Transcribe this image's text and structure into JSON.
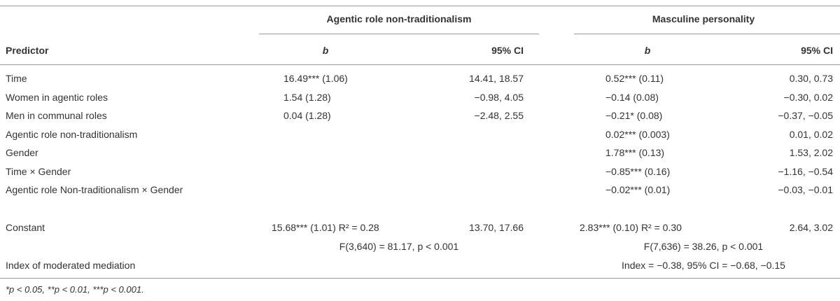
{
  "header": {
    "groups": [
      "Agentic role non-traditionalism",
      "Masculine personality"
    ],
    "columns": [
      "Predictor",
      "b",
      "95% CI",
      "b",
      "95% CI"
    ]
  },
  "rows": [
    [
      "Time",
      "16.49*** (1.06)",
      "14.41, 18.57",
      "0.52*** (0.11)",
      "0.30, 0.73"
    ],
    [
      "Women in agentic roles",
      "1.54 (1.28)",
      "−0.98, 4.05",
      "−0.14 (0.08)",
      "−0.30, 0.02"
    ],
    [
      "Men in communal roles",
      "0.04 (1.28)",
      "−2.48, 2.55",
      "−0.21* (0.08)",
      "−0.37, −0.05"
    ],
    [
      "Agentic role non-traditionalism",
      null,
      null,
      "0.02*** (0.003)",
      "0.01, 0.02"
    ],
    [
      "Gender",
      null,
      null,
      "1.78*** (0.13)",
      "1.53, 2.02"
    ],
    [
      "Time × Gender",
      null,
      null,
      "−0.85*** (0.16)",
      "−1.16, −0.54"
    ],
    [
      "Agentic role Non-traditionalism × Gender",
      null,
      null,
      "−0.02*** (0.01)",
      "−0.03, −0.01"
    ]
  ],
  "constant_row": [
    "Constant",
    "15.68*** (1.01) R² = 0.28",
    "13.70, 17.66",
    "2.83*** (0.10) R² = 0.30",
    "2.64, 3.02"
  ],
  "fit_row": [
    "F(3,640) = 81.17, p < 0.001",
    "F(7,636) = 38.26, p < 0.001"
  ],
  "index_row": [
    "Index of moderated mediation",
    "Index = −0.38, 95% CI = −0.68, −0.15"
  ],
  "footnote": "*p < 0.05, **p < 0.01, ***p < 0.001."
}
